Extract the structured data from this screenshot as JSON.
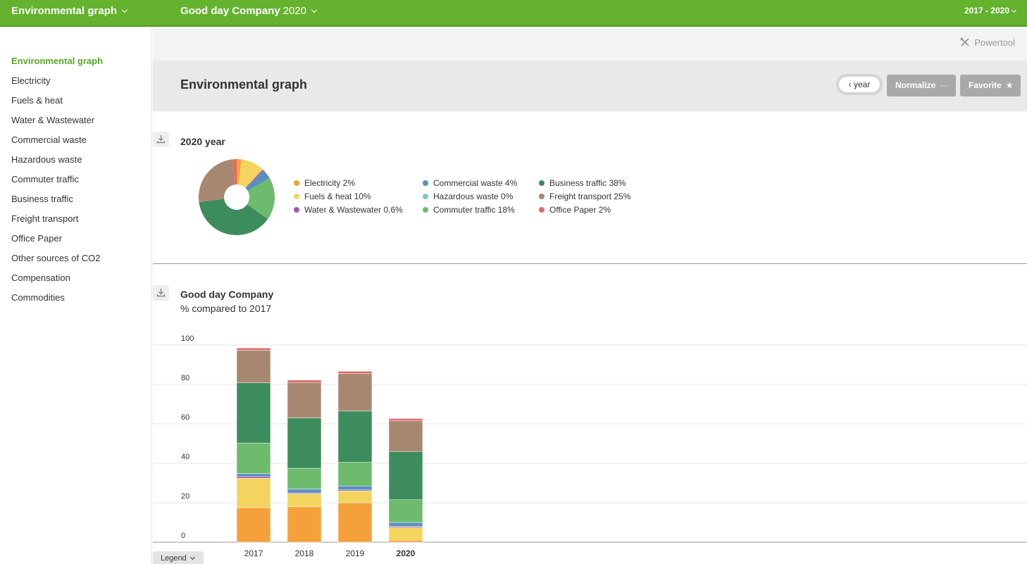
{
  "topbar": {
    "app_title": "Environmental graph",
    "company": "Good day Company",
    "year": "2020",
    "range": "2017 - 2020"
  },
  "sidebar": {
    "items": [
      {
        "label": "Environmental graph",
        "active": true
      },
      {
        "label": "Electricity"
      },
      {
        "label": "Fuels & heat"
      },
      {
        "label": "Water & Wastewater"
      },
      {
        "label": "Commercial waste"
      },
      {
        "label": "Hazardous waste"
      },
      {
        "label": "Commuter traffic"
      },
      {
        "label": "Business traffic"
      },
      {
        "label": "Freight transport"
      },
      {
        "label": "Office Paper"
      },
      {
        "label": "Other sources of CO2"
      },
      {
        "label": "Compensation"
      },
      {
        "label": "Commodities"
      }
    ]
  },
  "toolbar": {
    "powertool_label": "Powertool",
    "page_title": "Environmental graph",
    "year_button": "year",
    "normalize_label": "Normalize",
    "normalize_extra": "···",
    "favorite_label": "Favorite",
    "favorite_icon": "★"
  },
  "colors": {
    "Electricity": "#f5a03a",
    "Fuels & heat": "#f2d45e",
    "Water & Wastewater": "#9b59b6",
    "Commercial waste": "#5b8fbf",
    "Hazardous waste": "#7fc8c0",
    "Commuter traffic": "#6dbb6d",
    "Business traffic": "#3d8c5e",
    "Freight transport": "#a88770",
    "Office Paper": "#e06b6b"
  },
  "pie_section": {
    "title": "2020 year",
    "legend": [
      {
        "label": "Electricity 2%",
        "key": "Electricity"
      },
      {
        "label": "Fuels & heat 10%",
        "key": "Fuels & heat"
      },
      {
        "label": "Water & Wastewater 0,6%",
        "key": "Water & Wastewater"
      },
      {
        "label": "Commercial waste 4%",
        "key": "Commercial waste"
      },
      {
        "label": "Hazardous waste 0%",
        "key": "Hazardous waste"
      },
      {
        "label": "Commuter traffic 18%",
        "key": "Commuter traffic"
      },
      {
        "label": "Business traffic 38%",
        "key": "Business traffic"
      },
      {
        "label": "Freight transport 25%",
        "key": "Freight transport"
      },
      {
        "label": "Office Paper 2%",
        "key": "Office Paper"
      }
    ]
  },
  "bar_section": {
    "title": "Good day Company",
    "subtitle": "% compared to 2017",
    "legend_button": "Legend"
  },
  "chart_data": [
    {
      "type": "pie",
      "title": "2020 year",
      "donut": true,
      "slices": [
        {
          "name": "Electricity",
          "value": 2
        },
        {
          "name": "Fuels & heat",
          "value": 10
        },
        {
          "name": "Water & Wastewater",
          "value": 0.6
        },
        {
          "name": "Commercial waste",
          "value": 4
        },
        {
          "name": "Hazardous waste",
          "value": 0
        },
        {
          "name": "Commuter traffic",
          "value": 18
        },
        {
          "name": "Business traffic",
          "value": 38
        },
        {
          "name": "Freight transport",
          "value": 25
        },
        {
          "name": "Office Paper",
          "value": 2
        }
      ]
    },
    {
      "type": "bar",
      "stacked": true,
      "title": "Good day Company",
      "subtitle": "% compared to 2017",
      "categories": [
        "2017",
        "2018",
        "2019",
        "2020"
      ],
      "yticks": [
        "0",
        "20",
        "40",
        "60",
        "80",
        "100"
      ],
      "ylim": [
        0,
        100
      ],
      "grid": true,
      "series": [
        {
          "name": "Electricity",
          "values": [
            17.5,
            18,
            20,
            1
          ]
        },
        {
          "name": "Fuels & heat",
          "values": [
            15,
            6.5,
            6,
            6.5
          ]
        },
        {
          "name": "Water & Wastewater",
          "values": [
            0.8,
            0.5,
            0.5,
            0.5
          ]
        },
        {
          "name": "Commercial waste",
          "values": [
            1.5,
            2,
            2,
            2
          ]
        },
        {
          "name": "Hazardous waste",
          "values": [
            0,
            0,
            0,
            0
          ]
        },
        {
          "name": "Commuter traffic",
          "values": [
            15.5,
            10.5,
            12,
            11.5
          ]
        },
        {
          "name": "Business traffic",
          "values": [
            30.5,
            25.5,
            26,
            24.5
          ]
        },
        {
          "name": "Freight transport",
          "values": [
            16.5,
            18,
            19,
            15.5
          ]
        },
        {
          "name": "Office Paper",
          "values": [
            1.2,
            1.2,
            1.2,
            1.2
          ]
        }
      ]
    }
  ]
}
